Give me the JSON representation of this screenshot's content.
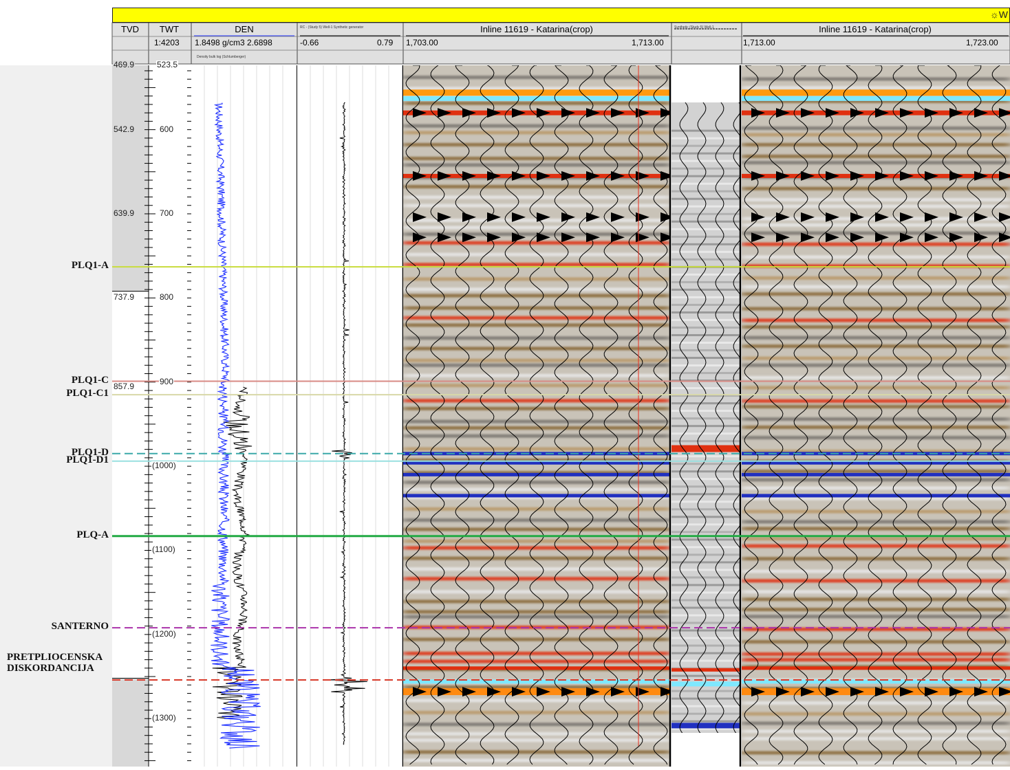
{
  "window": {
    "title_fragment": "W",
    "title_icon": "sun-gear-icon",
    "title_bar_color": "#ffff00"
  },
  "header": {
    "tvd_label": "TVD",
    "twt_label": "TWT",
    "twt_scale": "1:4203",
    "den_label": "DEN",
    "den_range": "1.8498 g/cm3 2.6898",
    "den_note": "Density bulk log (Schlumberger)",
    "rc_label": "RC - (Study 5) Well-1 Synthetic generator",
    "rc_min": "-0.66",
    "rc_max": "0.79",
    "seis1_label": "Inline 11619 - Katarina(crop)",
    "seis1_min": "1,703.00",
    "seis1_max": "1,713.00",
    "synth_label": "Synthetic (Study 5) Well-1",
    "seis2_label": "Inline 11619 - Katarina(crop)",
    "seis2_min": "1,713.00",
    "seis2_max": "1,723.00"
  },
  "depth_axis": {
    "tvd_labels": [
      "469.9",
      "542.9",
      "639.9",
      "737.9",
      "857.9"
    ],
    "twt_labels": [
      "523.5",
      "600",
      "700",
      "800",
      "900",
      "(1000)",
      "(1100)",
      "(1200)",
      "(1300)"
    ],
    "twt_min": 523.5,
    "twt_max": 1357
  },
  "tvd_pairs": [
    {
      "tvd": "469.9",
      "twt": 523.5
    },
    {
      "tvd": "542.9",
      "twt": 600
    },
    {
      "tvd": "639.9",
      "twt": 700
    },
    {
      "tvd": "737.9",
      "twt": 800
    },
    {
      "tvd": "857.9",
      "twt": 906
    }
  ],
  "tops": [
    {
      "name": "PLQ1-A",
      "twt": 763,
      "color": "#c8dc3c",
      "style": "solid"
    },
    {
      "name": "PLQ1-C",
      "twt": 899,
      "color": "#d88a84",
      "style": "solid"
    },
    {
      "name": "PLQ1-C1",
      "twt": 915,
      "color": "#d8d8a8",
      "style": "solid"
    },
    {
      "name": "PLQ1-D",
      "twt": 985,
      "color": "#3aa8a8",
      "style": "dashed"
    },
    {
      "name": "PLQ1-D1",
      "twt": 994,
      "color": "#98e0e0",
      "style": "solid"
    },
    {
      "name": "PLQ-A",
      "twt": 1083,
      "color": "#22aa44",
      "style": "solid"
    },
    {
      "name": "SANTERNO",
      "twt": 1192,
      "color": "#aa33aa",
      "style": "dashed"
    },
    {
      "name": "PRETPLIOCENSKA DISKORDANCIJA",
      "twt": 1254,
      "color": "#d83a2a",
      "style": "dashed"
    }
  ],
  "colors": {
    "density_curve": "#1a2cff",
    "density_secondary": "#000000",
    "track_bg_gray": "#d8d8d8",
    "red_marker": "#e83020",
    "seis_peak": "#e03010",
    "seis_trough": "#2030c0",
    "seis_bright": "#7ee8ff"
  }
}
